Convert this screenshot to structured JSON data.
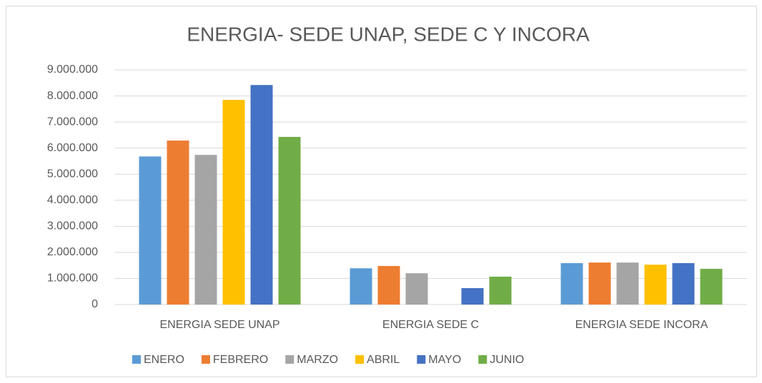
{
  "chart_data": {
    "type": "bar",
    "title": "ENERGIA- SEDE UNAP, SEDE C Y INCORA",
    "categories": [
      "ENERGIA SEDE UNAP",
      "ENERGIA SEDE C",
      "ENERGIA  SEDE INCORA"
    ],
    "series": [
      {
        "name": "ENERO",
        "color": "#5b9bd5",
        "values": [
          5680000,
          1390000,
          1590000
        ]
      },
      {
        "name": "FEBRERO",
        "color": "#ed7d31",
        "values": [
          6290000,
          1480000,
          1610000
        ]
      },
      {
        "name": "MARZO",
        "color": "#a5a5a5",
        "values": [
          5740000,
          1200000,
          1610000
        ]
      },
      {
        "name": "ABRIL",
        "color": "#ffc000",
        "values": [
          7850000,
          null,
          1530000
        ]
      },
      {
        "name": "MAYO",
        "color": "#4472c4",
        "values": [
          8420000,
          630000,
          1590000
        ]
      },
      {
        "name": "JUNIO",
        "color": "#70ad47",
        "values": [
          6430000,
          1070000,
          1370000
        ]
      }
    ],
    "ylim": [
      0,
      9000000
    ],
    "yticks": [
      0,
      {
        "value": 1000000,
        "label": "1.000.000"
      },
      {
        "value": 2000000,
        "label": "2.000.000"
      },
      {
        "value": 3000000,
        "label": "3.000.000"
      },
      {
        "value": 4000000,
        "label": "4.000.000"
      },
      {
        "value": 5000000,
        "label": "5.000.000"
      },
      {
        "value": 6000000,
        "label": "6.000.000"
      },
      {
        "value": 7000000,
        "label": "7.000.000"
      },
      {
        "value": 8000000,
        "label": "8.000.000"
      },
      {
        "value": 9000000,
        "label": "9.000.000"
      }
    ],
    "grid": true,
    "legend": "bottom"
  }
}
